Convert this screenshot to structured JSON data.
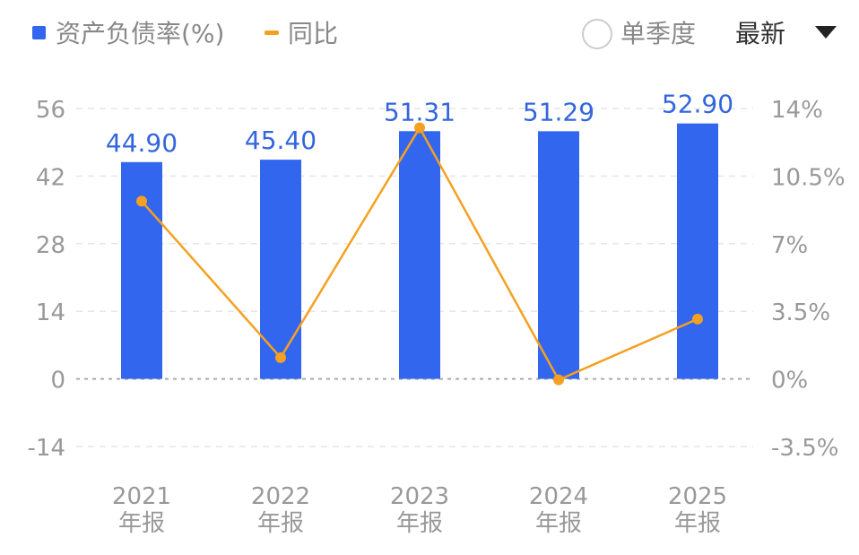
{
  "header": {
    "legend_bar_label": "资产负债率(%)",
    "legend_line_label": "同比",
    "single_quarter_label": "单季度",
    "period_selector_value": "最新",
    "single_quarter_checked": false
  },
  "colors": {
    "bar": "#3366EE",
    "line": "#F5A020",
    "value_label": "#3366DD",
    "axis_text": "#999999",
    "grid": "#E6E6E6",
    "zero_line": "#AAAAAA",
    "header_text": "#888888",
    "dropdown_text": "#333333"
  },
  "chart_data": {
    "type": "bar",
    "categories": [
      "2021\n年报",
      "2022\n年报",
      "2023\n年报",
      "2024\n年报",
      "2025\n年报"
    ],
    "series": [
      {
        "name": "资产负债率(%)",
        "type": "bar",
        "values": [
          44.9,
          45.4,
          51.31,
          51.29,
          52.9
        ],
        "labels": [
          "44.90",
          "45.40",
          "51.31",
          "51.29",
          "52.90"
        ],
        "axis": "left"
      },
      {
        "name": "同比",
        "type": "line",
        "values": [
          9.2,
          1.1,
          13.0,
          -0.05,
          3.1
        ],
        "axis": "right"
      }
    ],
    "y_left": {
      "ylim": [
        -14,
        56
      ],
      "ticks": [
        56,
        42,
        28,
        14,
        0,
        -14
      ],
      "tick_labels": [
        "56",
        "42",
        "28",
        "14",
        "0",
        "-14"
      ]
    },
    "y_right": {
      "ylim": [
        -3.5,
        14
      ],
      "ticks": [
        14,
        10.5,
        7,
        3.5,
        0,
        -3.5
      ],
      "tick_labels": [
        "14%",
        "10.5%",
        "7%",
        "3.5%",
        "0%",
        "-3.5%"
      ]
    },
    "grid": true,
    "legend": "top-left"
  }
}
